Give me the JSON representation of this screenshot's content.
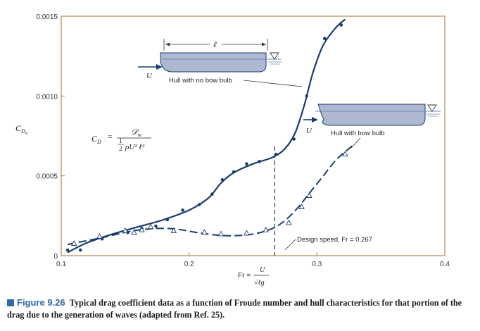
{
  "chart_data": {
    "type": "scatter",
    "xlim": [
      0.1,
      0.4
    ],
    "ylim": [
      0,
      0.0015
    ],
    "xticks": [
      "0.1",
      "0.2",
      "0.3",
      "0.4"
    ],
    "yticks": [
      "0",
      "0.0005",
      "0.0010",
      "0.0015"
    ],
    "xticks_values": [
      0.1,
      0.2,
      0.3,
      0.4
    ],
    "yticks_values": [
      0,
      0.0005,
      0.001,
      0.0015
    ],
    "series": [
      {
        "name": "Hull with no bow bulb",
        "marker": "dot",
        "line": "solid",
        "points": [
          [
            0.105,
            3.5e-05
          ],
          [
            0.115,
            3.5e-05
          ],
          [
            0.132,
            0.000105
          ],
          [
            0.152,
            0.000145
          ],
          [
            0.163,
            0.00017
          ],
          [
            0.174,
            0.000185
          ],
          [
            0.183,
            0.000225
          ],
          [
            0.195,
            0.000285
          ],
          [
            0.208,
            0.00032
          ],
          [
            0.218,
            0.000385
          ],
          [
            0.226,
            0.000475
          ],
          [
            0.235,
            0.000525
          ],
          [
            0.245,
            0.000575
          ],
          [
            0.255,
            0.00059
          ],
          [
            0.268,
            0.000635
          ],
          [
            0.282,
            0.00073
          ],
          [
            0.292,
            0.001
          ],
          [
            0.306,
            0.00136
          ],
          [
            0.319,
            0.001445
          ]
        ],
        "curve": [
          [
            0.105,
            2e-05
          ],
          [
            0.12,
            8e-05
          ],
          [
            0.14,
            0.000135
          ],
          [
            0.16,
            0.00018
          ],
          [
            0.18,
            0.000225
          ],
          [
            0.2,
            0.000285
          ],
          [
            0.215,
            0.00036
          ],
          [
            0.225,
            0.000455
          ],
          [
            0.235,
            0.00052
          ],
          [
            0.25,
            0.000575
          ],
          [
            0.265,
            0.000615
          ],
          [
            0.275,
            0.00067
          ],
          [
            0.283,
            0.00077
          ],
          [
            0.29,
            0.00094
          ],
          [
            0.297,
            0.00115
          ],
          [
            0.305,
            0.00132
          ],
          [
            0.315,
            0.00143
          ],
          [
            0.322,
            0.00148
          ]
        ]
      },
      {
        "name": "Hull with bow bulb",
        "marker": "triangle",
        "line": "dashed",
        "points": [
          [
            0.11,
            7.5e-05
          ],
          [
            0.13,
            0.00012
          ],
          [
            0.15,
            0.000155
          ],
          [
            0.157,
            0.000145
          ],
          [
            0.163,
            0.00016
          ],
          [
            0.17,
            0.00018
          ],
          [
            0.188,
            0.000155
          ],
          [
            0.212,
            0.000145
          ],
          [
            0.225,
            0.000135
          ],
          [
            0.245,
            0.00014
          ],
          [
            0.26,
            0.00016
          ],
          [
            0.278,
            0.000205
          ],
          [
            0.288,
            0.000305
          ],
          [
            0.294,
            0.000375
          ],
          [
            0.322,
            0.000635
          ]
        ],
        "curve": [
          [
            0.105,
            7e-05
          ],
          [
            0.13,
            0.00011
          ],
          [
            0.16,
            0.00016
          ],
          [
            0.185,
            0.00017
          ],
          [
            0.21,
            0.00014
          ],
          [
            0.23,
            0.000125
          ],
          [
            0.25,
            0.000135
          ],
          [
            0.265,
            0.00017
          ],
          [
            0.275,
            0.00022
          ],
          [
            0.285,
            0.0003
          ],
          [
            0.295,
            0.0004
          ],
          [
            0.305,
            0.0005
          ],
          [
            0.315,
            0.0006
          ],
          [
            0.328,
            0.00069
          ]
        ]
      }
    ],
    "design_speed_x": 0.267,
    "annotations": {
      "ylabel_main": "C",
      "ylabel_sub": "D",
      "ylabel_subsub": "w",
      "xlabel_lhs": "Fr =",
      "xlabel_num": "U",
      "xlabel_den": "√ℓg",
      "hull_no_bulb": "Hull with no bow bulb",
      "hull_bulb": "Hull with bow bulb",
      "design_speed": "Design speed, Fr = 0.267",
      "length_symbol": "ℓ",
      "velocity_symbol": "U",
      "formula_lhs": "C",
      "formula_lhs_sub": "D",
      "formula_eq": "=",
      "formula_num": "𝒟",
      "formula_num_sub": "w",
      "formula_den_frac_num": "1",
      "formula_den_frac_den": "2",
      "formula_den_rest": "ρU² ℓ²"
    }
  },
  "caption": {
    "label": "Figure 9.26",
    "text": "Typical drag coefficient data as a function of Froude number and hull characteristics for that portion of the drag due to the generation of waves (adapted from Ref. 25)."
  },
  "colors": {
    "frame": "#b5874a",
    "curve": "#1a3d6e",
    "hull_fill": "#aeb9d1",
    "water": "#6a8bbd",
    "caption_accent": "#2e6aa6"
  }
}
